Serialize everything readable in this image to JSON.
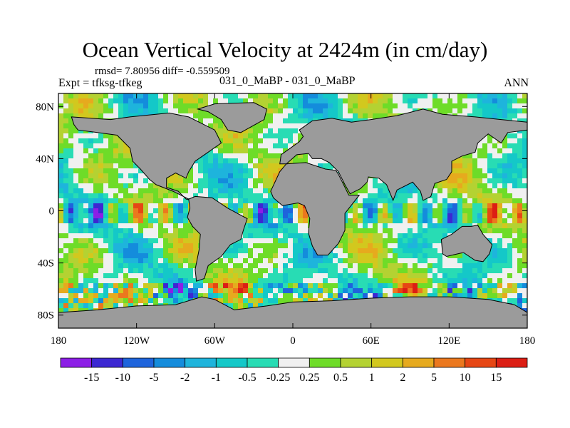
{
  "header": {
    "title": "Ocean Vertical Velocity at 2424m (in cm/day)",
    "stats": "rmsd= 7.80956  diff= -0.559509",
    "expt": "Expt = tfksg-tfkeg",
    "case_label": "031_0_MaBP - 031_0_MaBP",
    "season": "ANN"
  },
  "chart_data": {
    "type": "heatmap",
    "title": "Ocean Vertical Velocity at 2424m (in cm/day)",
    "projection": "cylindrical-equidistant",
    "x_range": [
      -180,
      180
    ],
    "y_range": [
      -90,
      90
    ],
    "x_ticks": [
      {
        "value": -180,
        "label": "180"
      },
      {
        "value": -120,
        "label": "120W"
      },
      {
        "value": -60,
        "label": "60W"
      },
      {
        "value": 0,
        "label": "0"
      },
      {
        "value": 60,
        "label": "60E"
      },
      {
        "value": 120,
        "label": "120E"
      },
      {
        "value": 180,
        "label": "180"
      }
    ],
    "y_ticks": [
      {
        "value": 80,
        "label": "80N"
      },
      {
        "value": 40,
        "label": "40N"
      },
      {
        "value": 0,
        "label": "0"
      },
      {
        "value": -40,
        "label": "40S"
      },
      {
        "value": -80,
        "label": "80S"
      }
    ],
    "land_color": "#9b9b9b",
    "colorbar": {
      "levels": [
        "-15",
        "-10",
        "-5",
        "-2",
        "-1",
        "-0.5",
        "-0.25",
        "0.25",
        "0.5",
        "1",
        "2",
        "5",
        "10",
        "15"
      ],
      "colors": [
        "#8c1ee6",
        "#3c28d2",
        "#1e64dc",
        "#148cdc",
        "#1eb4dc",
        "#14c8c8",
        "#28dcb4",
        "#f0f0f0",
        "#6edc28",
        "#b4d232",
        "#d2c81e",
        "#e6aa1e",
        "#eb781e",
        "#e64614",
        "#dc1e14"
      ]
    }
  }
}
